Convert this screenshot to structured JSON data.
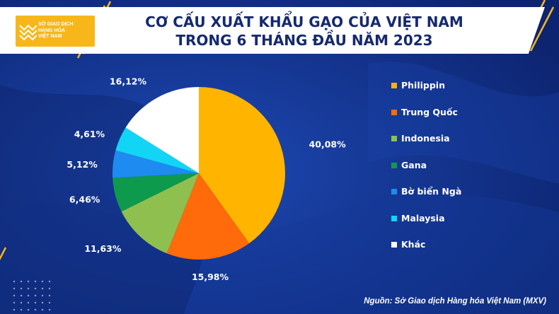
{
  "header": {
    "logo_lines": [
      "SỞ GIAO DỊCH",
      "HÀNG HÓA",
      "VIỆT NAM"
    ],
    "title_line1": "CƠ CẤU XUẤT KHẨU GẠO CỦA VIỆT NAM",
    "title_line2": "TRONG 6 THÁNG ĐẦU NĂM 2023"
  },
  "source": "Nguồn: Sở Giao dịch Hàng hóa Việt Nam (MXV)",
  "chart_data": {
    "type": "pie",
    "title": "CƠ CẤU XUẤT KHẨU GẠO CỦA VIỆT NAM TRONG 6 THÁNG ĐẦU NĂM 2023",
    "legend_position": "right",
    "slices": [
      {
        "name": "Philippin",
        "value": 40.08,
        "label": "40,08%",
        "color": "#ffb400"
      },
      {
        "name": "Trung Quốc",
        "value": 15.98,
        "label": "15,98%",
        "color": "#ff6a0a"
      },
      {
        "name": "Indonesia",
        "value": 11.63,
        "label": "11,63%",
        "color": "#8fc04f"
      },
      {
        "name": "Gana",
        "value": 6.46,
        "label": "6,46%",
        "color": "#0e9a4c"
      },
      {
        "name": "Bờ biển Ngà",
        "value": 5.12,
        "label": "5,12%",
        "color": "#1d8bf0"
      },
      {
        "name": "Malaysia",
        "value": 4.61,
        "label": "4,61%",
        "color": "#12d4f5"
      },
      {
        "name": "Khác",
        "value": 16.12,
        "label": "16,12%",
        "color": "#ffffff"
      }
    ]
  }
}
